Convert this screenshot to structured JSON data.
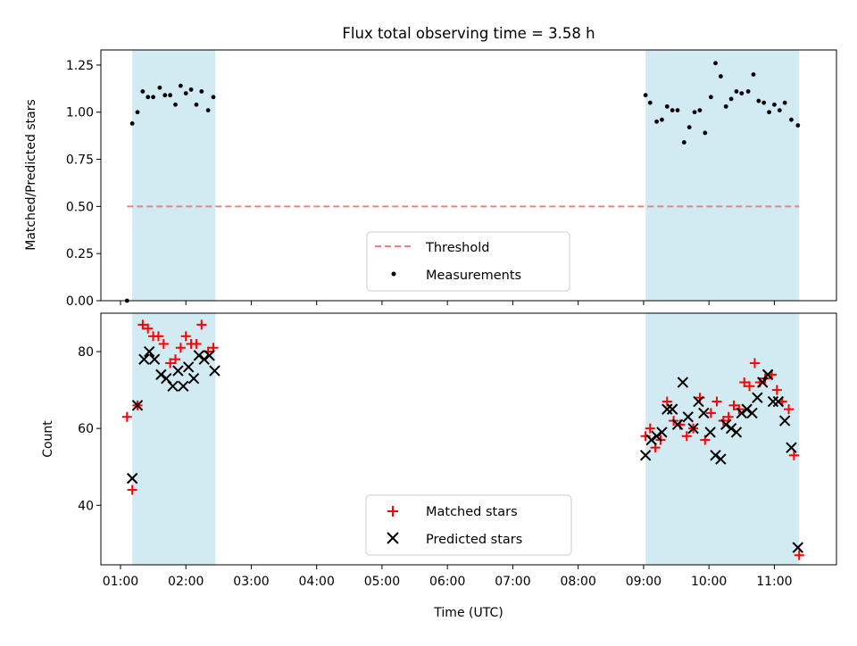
{
  "chart_data": {
    "type": "scatter",
    "title": "Flux total observing time = 3.58 h",
    "xlabel": "Time (UTC)",
    "x_unit": "hours UTC",
    "xlim": [
      0.7,
      11.95
    ],
    "x_ticks": [
      {
        "value": 1,
        "label": "01:00"
      },
      {
        "value": 2,
        "label": "02:00"
      },
      {
        "value": 3,
        "label": "03:00"
      },
      {
        "value": 4,
        "label": "04:00"
      },
      {
        "value": 5,
        "label": "05:00"
      },
      {
        "value": 6,
        "label": "06:00"
      },
      {
        "value": 7,
        "label": "07:00"
      },
      {
        "value": 8,
        "label": "08:00"
      },
      {
        "value": 9,
        "label": "09:00"
      },
      {
        "value": 10,
        "label": "10:00"
      },
      {
        "value": 11,
        "label": "11:00"
      }
    ],
    "shaded_intervals": [
      [
        1.18,
        2.45
      ],
      [
        9.03,
        11.38
      ]
    ],
    "shade_color": "#add8e6",
    "top_panel": {
      "ylabel": "Matched/Predicted stars",
      "ylim": [
        0.0,
        1.33
      ],
      "y_ticks": [
        "0.00",
        "0.25",
        "0.50",
        "0.75",
        "1.00",
        "1.25"
      ],
      "threshold": {
        "name": "Threshold",
        "value": 0.5,
        "x_range": [
          1.1,
          11.38
        ],
        "color": "#f08080"
      },
      "legend": {
        "position": "lower center",
        "entries": [
          "Threshold",
          "Measurements"
        ]
      },
      "measurements": {
        "name": "Measurements",
        "color": "#000000",
        "points": [
          [
            1.1,
            0.0
          ],
          [
            1.18,
            0.94
          ],
          [
            1.26,
            1.0
          ],
          [
            1.34,
            1.11
          ],
          [
            1.42,
            1.08
          ],
          [
            1.5,
            1.08
          ],
          [
            1.6,
            1.13
          ],
          [
            1.68,
            1.09
          ],
          [
            1.76,
            1.09
          ],
          [
            1.84,
            1.04
          ],
          [
            1.92,
            1.14
          ],
          [
            2.0,
            1.1
          ],
          [
            2.08,
            1.12
          ],
          [
            2.16,
            1.04
          ],
          [
            2.24,
            1.11
          ],
          [
            2.34,
            1.01
          ],
          [
            2.42,
            1.08
          ],
          [
            9.03,
            1.09
          ],
          [
            9.1,
            1.05
          ],
          [
            9.2,
            0.95
          ],
          [
            9.28,
            0.96
          ],
          [
            9.36,
            1.03
          ],
          [
            9.44,
            1.01
          ],
          [
            9.52,
            1.01
          ],
          [
            9.62,
            0.84
          ],
          [
            9.7,
            0.92
          ],
          [
            9.78,
            1.0
          ],
          [
            9.86,
            1.01
          ],
          [
            9.94,
            0.89
          ],
          [
            10.03,
            1.08
          ],
          [
            10.1,
            1.26
          ],
          [
            10.18,
            1.19
          ],
          [
            10.26,
            1.03
          ],
          [
            10.34,
            1.07
          ],
          [
            10.42,
            1.11
          ],
          [
            10.5,
            1.1
          ],
          [
            10.6,
            1.11
          ],
          [
            10.68,
            1.2
          ],
          [
            10.76,
            1.06
          ],
          [
            10.84,
            1.05
          ],
          [
            10.92,
            1.0
          ],
          [
            11.0,
            1.04
          ],
          [
            11.08,
            1.01
          ],
          [
            11.16,
            1.05
          ],
          [
            11.26,
            0.96
          ],
          [
            11.36,
            0.93
          ]
        ]
      }
    },
    "bottom_panel": {
      "ylabel": "Count",
      "ylim": [
        24.5,
        90
      ],
      "y_ticks": [
        "40",
        "60",
        "80"
      ],
      "legend": {
        "position": "lower center",
        "entries": [
          "Matched stars",
          "Predicted stars"
        ]
      },
      "series": [
        {
          "name": "Matched stars",
          "marker": "+",
          "color": "#ff0000",
          "points": [
            [
              1.1,
              63
            ],
            [
              1.18,
              44
            ],
            [
              1.26,
              66
            ],
            [
              1.34,
              87
            ],
            [
              1.42,
              86
            ],
            [
              1.5,
              84
            ],
            [
              1.58,
              84
            ],
            [
              1.66,
              82
            ],
            [
              1.76,
              77
            ],
            [
              1.84,
              78
            ],
            [
              1.92,
              81
            ],
            [
              2.0,
              84
            ],
            [
              2.08,
              82
            ],
            [
              2.16,
              82
            ],
            [
              2.24,
              87
            ],
            [
              2.34,
              80
            ],
            [
              2.42,
              81
            ],
            [
              9.03,
              58
            ],
            [
              9.1,
              60
            ],
            [
              9.18,
              55
            ],
            [
              9.26,
              57
            ],
            [
              9.36,
              67
            ],
            [
              9.46,
              62
            ],
            [
              9.56,
              61
            ],
            [
              9.66,
              58
            ],
            [
              9.76,
              60
            ],
            [
              9.86,
              68
            ],
            [
              9.94,
              57
            ],
            [
              10.03,
              64
            ],
            [
              10.12,
              67
            ],
            [
              10.22,
              62
            ],
            [
              10.3,
              63
            ],
            [
              10.38,
              66
            ],
            [
              10.46,
              65
            ],
            [
              10.54,
              72
            ],
            [
              10.62,
              71
            ],
            [
              10.7,
              77
            ],
            [
              10.78,
              72
            ],
            [
              10.86,
              73
            ],
            [
              10.96,
              74
            ],
            [
              11.04,
              70
            ],
            [
              11.12,
              67
            ],
            [
              11.22,
              65
            ],
            [
              11.3,
              53
            ],
            [
              11.38,
              27
            ]
          ]
        },
        {
          "name": "Predicted stars",
          "marker": "x",
          "color": "#000000",
          "points": [
            [
              1.18,
              47
            ],
            [
              1.26,
              66
            ],
            [
              1.36,
              78
            ],
            [
              1.44,
              80
            ],
            [
              1.52,
              78
            ],
            [
              1.62,
              74
            ],
            [
              1.7,
              73
            ],
            [
              1.8,
              71
            ],
            [
              1.88,
              75
            ],
            [
              1.96,
              71
            ],
            [
              2.04,
              76
            ],
            [
              2.12,
              73
            ],
            [
              2.2,
              79
            ],
            [
              2.28,
              78
            ],
            [
              2.36,
              79
            ],
            [
              2.44,
              75
            ],
            [
              9.03,
              53
            ],
            [
              9.12,
              57
            ],
            [
              9.2,
              58
            ],
            [
              9.28,
              59
            ],
            [
              9.36,
              65
            ],
            [
              9.44,
              65
            ],
            [
              9.52,
              61
            ],
            [
              9.6,
              72
            ],
            [
              9.68,
              63
            ],
            [
              9.76,
              60
            ],
            [
              9.84,
              67
            ],
            [
              9.92,
              64
            ],
            [
              10.02,
              59
            ],
            [
              10.1,
              53
            ],
            [
              10.18,
              52
            ],
            [
              10.26,
              61
            ],
            [
              10.34,
              60
            ],
            [
              10.42,
              59
            ],
            [
              10.5,
              64
            ],
            [
              10.58,
              65
            ],
            [
              10.66,
              64
            ],
            [
              10.74,
              68
            ],
            [
              10.82,
              72
            ],
            [
              10.9,
              74
            ],
            [
              10.98,
              67
            ],
            [
              11.06,
              67
            ],
            [
              11.16,
              62
            ],
            [
              11.26,
              55
            ],
            [
              11.36,
              29
            ]
          ]
        }
      ]
    }
  }
}
